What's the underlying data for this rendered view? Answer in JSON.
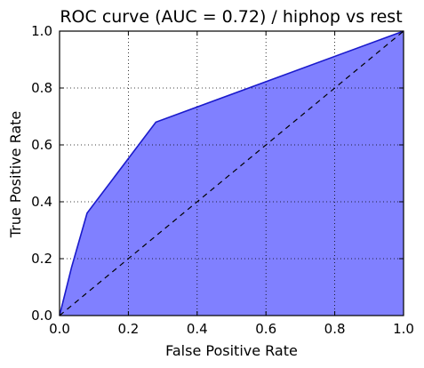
{
  "chart_data": {
    "type": "area",
    "title": "ROC curve (AUC = 0.72) / hiphop vs rest",
    "xlabel": "False Positive Rate",
    "ylabel": "True Positive Rate",
    "xlim": [
      0.0,
      1.0
    ],
    "ylim": [
      0.0,
      1.0
    ],
    "x_ticks": [
      "0.0",
      "0.2",
      "0.4",
      "0.6",
      "0.8",
      "1.0"
    ],
    "y_ticks": [
      "0.0",
      "0.2",
      "0.4",
      "0.6",
      "0.8",
      "1.0"
    ],
    "grid": true,
    "series": [
      {
        "type": "line-filled",
        "x": [
          0.0,
          0.035,
          0.08,
          0.28,
          1.0
        ],
        "y": [
          0.0,
          0.17,
          0.36,
          0.68,
          1.0
        ],
        "color": "#1a1acc",
        "fill": "#8080ff"
      },
      {
        "type": "dashed-line",
        "x": [
          0.0,
          1.0
        ],
        "y": [
          0.0,
          1.0
        ],
        "color": "#000000"
      }
    ]
  }
}
